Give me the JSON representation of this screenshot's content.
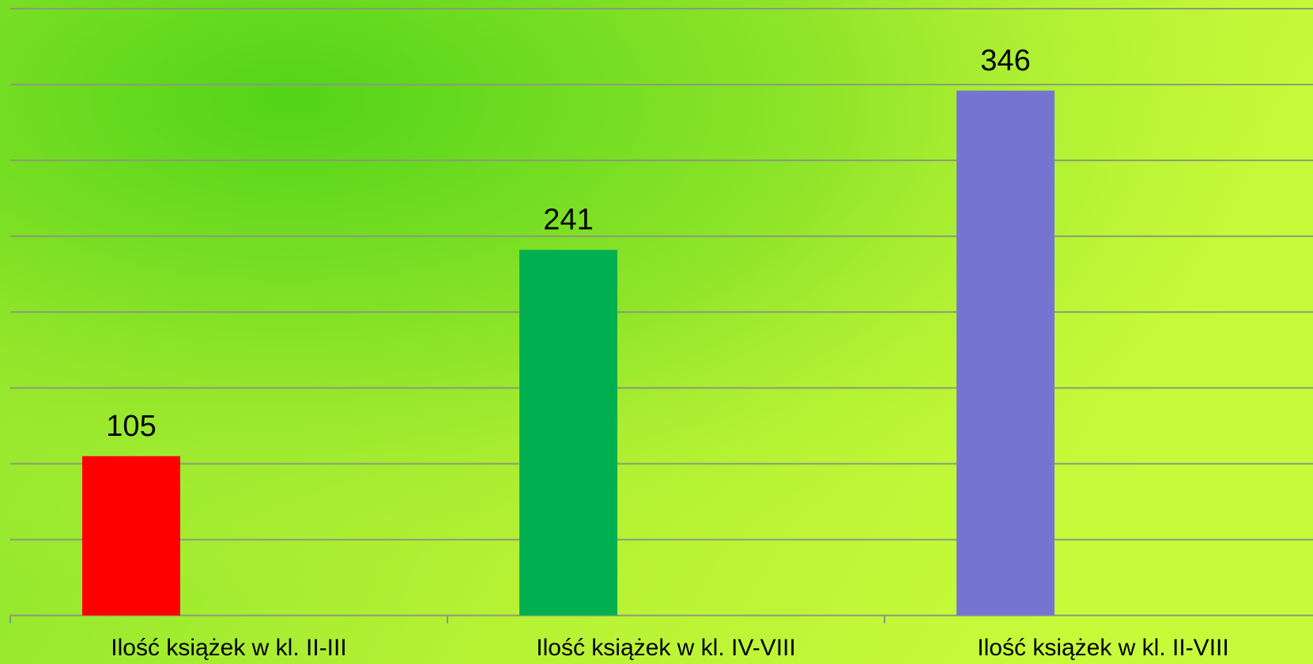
{
  "chart_data": {
    "type": "bar",
    "categories": [
      "Ilość książek w kl. II-III",
      "Ilość książek  w kl. IV-VIII",
      "Ilość książek  w kl. II-VIII"
    ],
    "values": [
      105,
      241,
      346
    ],
    "colors": [
      "#ff0000",
      "#00b050",
      "#7575d1"
    ],
    "ylim": [
      0,
      400
    ],
    "yticks": [
      0,
      50,
      100,
      150,
      200,
      250,
      300,
      350,
      400
    ],
    "grid": true
  }
}
